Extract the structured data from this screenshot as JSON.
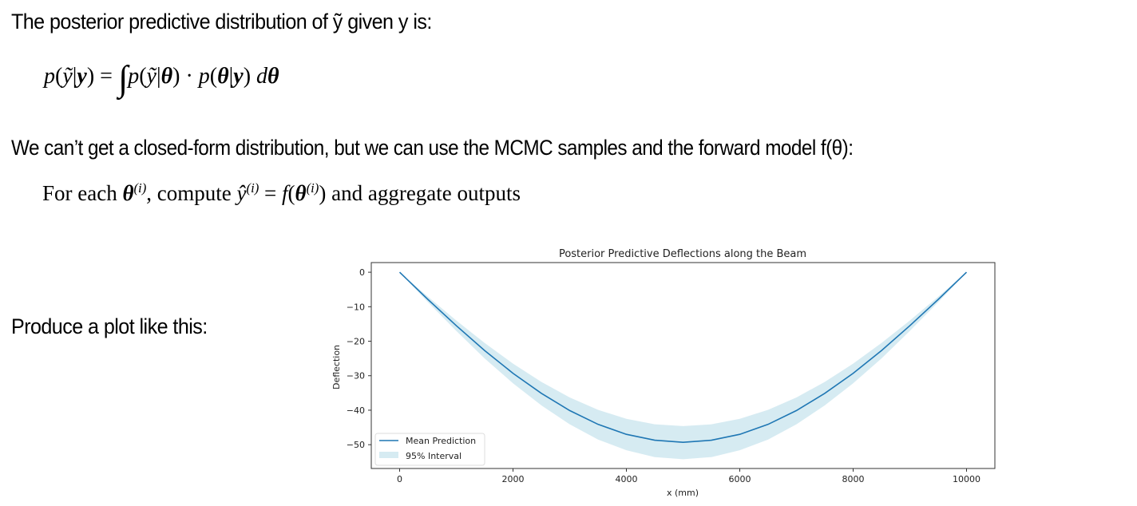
{
  "slide": {
    "line1": [
      {
        "t": "The posterior predictive distribution of "
      },
      {
        "t": "ỹ",
        "s": "it"
      },
      {
        "t": " given "
      },
      {
        "t": "y",
        "s": "bi"
      },
      {
        "t": " is:"
      }
    ],
    "formula": [
      {
        "t": "p",
        "s": "it"
      },
      {
        "t": "("
      },
      {
        "t": "ỹ",
        "s": "it"
      },
      {
        "t": "|"
      },
      {
        "t": "y",
        "s": "bi"
      },
      {
        "t": ") = "
      },
      {
        "t": "∫",
        "s": "int"
      },
      {
        "t": "p",
        "s": "it"
      },
      {
        "t": "("
      },
      {
        "t": "ỹ",
        "s": "it"
      },
      {
        "t": "|"
      },
      {
        "t": "θ",
        "s": "bi"
      },
      {
        "t": ") · "
      },
      {
        "t": "p",
        "s": "it"
      },
      {
        "t": "("
      },
      {
        "t": "θ",
        "s": "bi"
      },
      {
        "t": "|"
      },
      {
        "t": "y",
        "s": "bi"
      },
      {
        "t": ") "
      },
      {
        "t": "d",
        "s": "it"
      },
      {
        "t": "θ",
        "s": "bi"
      }
    ],
    "line3": [
      {
        "t": "We can’t get a closed-form distribution, but we can use the MCMC samples and the forward model "
      },
      {
        "t": "f",
        "s": "it"
      },
      {
        "t": "("
      },
      {
        "t": "θ",
        "s": "bi"
      },
      {
        "t": "):"
      }
    ],
    "line4": [
      {
        "t": "For each "
      },
      {
        "t": "θ",
        "s": "bi"
      },
      {
        "t": "(i)",
        "s": "sup"
      },
      {
        "t": ", compute "
      },
      {
        "t": "ŷ",
        "s": "it"
      },
      {
        "t": "(i)",
        "s": "sup"
      },
      {
        "t": " = "
      },
      {
        "t": "f",
        "s": "it"
      },
      {
        "t": "("
      },
      {
        "t": "θ",
        "s": "bi"
      },
      {
        "t": "(i)",
        "s": "sup"
      },
      {
        "t": ")"
      },
      {
        "t": " and aggregate outputs"
      }
    ],
    "line5": [
      {
        "t": "Produce a plot like this:"
      }
    ]
  },
  "chart_data": {
    "type": "line",
    "title": "Posterior Predictive Deflections along the Beam",
    "xlabel": "x (mm)",
    "ylabel": "Deflection",
    "xlim": [
      -500,
      10500
    ],
    "ylim": [
      -56.9,
      2.8
    ],
    "xticks": [
      0,
      2000,
      4000,
      6000,
      8000,
      10000
    ],
    "xtick_labels": [
      "0",
      "2000",
      "4000",
      "6000",
      "8000",
      "10000"
    ],
    "yticks": [
      0,
      -10,
      -20,
      -30,
      -40,
      -50
    ],
    "ytick_labels": [
      "0",
      "−10",
      "−20",
      "−30",
      "−40",
      "−50"
    ],
    "grid": false,
    "legend_position": "lower-left",
    "colors": {
      "mean": "#1f77b4",
      "interval": "#add8e6"
    },
    "x": [
      0,
      500,
      1000,
      1500,
      2000,
      2500,
      3000,
      3500,
      4000,
      4500,
      5000,
      5500,
      6000,
      6500,
      7000,
      7500,
      8000,
      8500,
      9000,
      9500,
      10000
    ],
    "series": [
      {
        "name": "Mean Prediction",
        "kind": "line",
        "values": [
          0,
          -7.9,
          -15.5,
          -22.7,
          -29.3,
          -35.1,
          -40.1,
          -44.1,
          -47.0,
          -48.7,
          -49.3,
          -48.7,
          -47.0,
          -44.1,
          -40.1,
          -35.1,
          -29.3,
          -22.7,
          -15.5,
          -7.9,
          0
        ]
      },
      {
        "name": "95% Interval",
        "kind": "band",
        "lower": [
          0,
          -8.7,
          -17.0,
          -25.0,
          -32.2,
          -38.6,
          -44.1,
          -48.5,
          -51.6,
          -53.6,
          -54.2,
          -53.6,
          -51.6,
          -48.5,
          -44.1,
          -38.6,
          -32.2,
          -25.0,
          -17.0,
          -8.7,
          0
        ],
        "upper": [
          0,
          -7.1,
          -14.0,
          -20.5,
          -26.5,
          -31.8,
          -36.3,
          -39.9,
          -42.5,
          -44.1,
          -44.6,
          -44.1,
          -42.5,
          -39.9,
          -36.3,
          -31.8,
          -26.5,
          -20.5,
          -14.0,
          -7.1,
          0
        ]
      }
    ]
  }
}
